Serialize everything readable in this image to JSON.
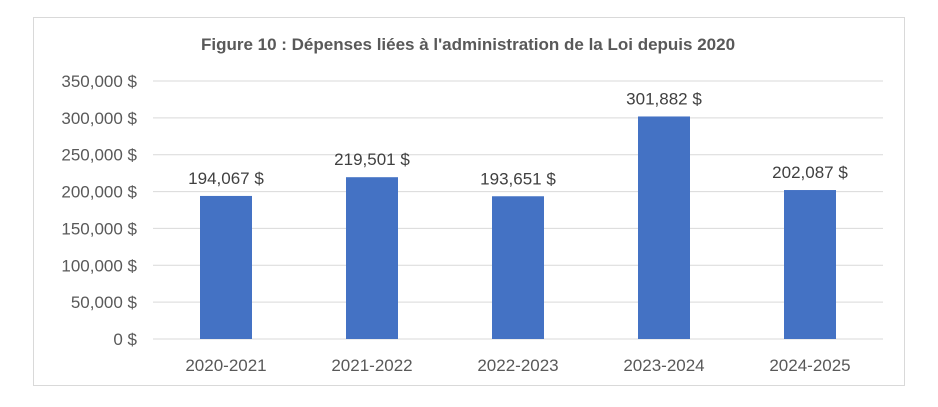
{
  "chart_data": {
    "type": "bar",
    "title": "Figure 10 : Dépenses liées à l'administration de la Loi depuis 2020",
    "categories": [
      "2020-2021",
      "2021-2022",
      "2022-2023",
      "2023-2024",
      "2024-2025"
    ],
    "values": [
      194067,
      219501,
      193651,
      301882,
      202087
    ],
    "data_labels": [
      "194,067 $",
      "219,501 $",
      "193,651 $",
      "301,882 $",
      "202,087 $"
    ],
    "ylim": [
      0,
      350000
    ],
    "yticks": [
      0,
      50000,
      100000,
      150000,
      200000,
      250000,
      300000,
      350000
    ],
    "ytick_labels": [
      "0 $",
      "50,000 $",
      "100,000 $",
      "150,000 $",
      "200,000 $",
      "250,000 $",
      "300,000 $",
      "350,000 $"
    ],
    "xlabel": "",
    "ylabel": "",
    "grid": true,
    "legend": "none",
    "colors": {
      "bar": "#4472c4",
      "grid": "#d9d9d9",
      "text": "#595959"
    }
  }
}
